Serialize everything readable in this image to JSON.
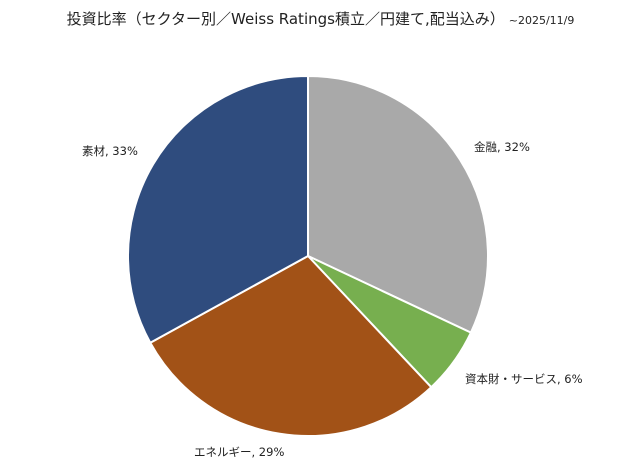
{
  "chart_data": {
    "type": "pie",
    "title": "投資比率（セクター別／Weiss Ratings積立／円建て,配当込み）",
    "subtitle": "~2025/11/9",
    "slices": [
      {
        "name": "金融",
        "value": 32,
        "label": "金融, 32%",
        "color": "#A9A9A9"
      },
      {
        "name": "資本財・サービス",
        "value": 6,
        "label": "資本財・サービス, 6%",
        "color": "#77AF4F"
      },
      {
        "name": "エネルギー",
        "value": 29,
        "label": "エネルギー, 29%",
        "color": "#A25217"
      },
      {
        "name": "素材",
        "value": 33,
        "label": "素材, 33%",
        "color": "#2F4C7E"
      }
    ],
    "start_angle": "top",
    "direction": "clockwise",
    "legend": "none"
  }
}
